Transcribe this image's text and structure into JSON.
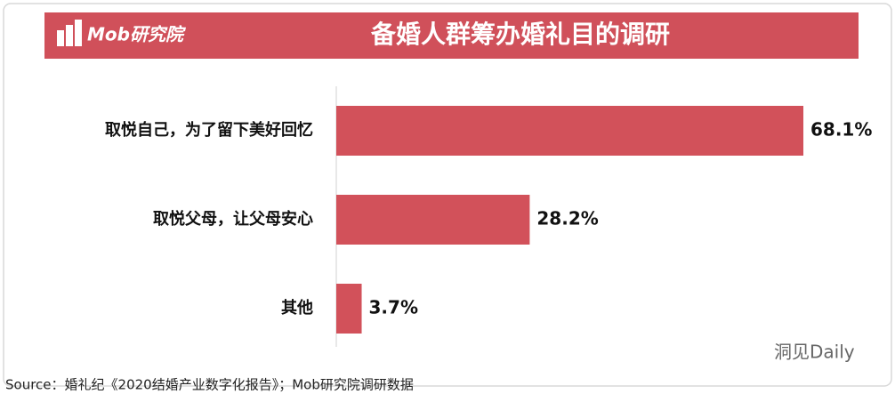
{
  "header": {
    "logo": "Mob研究院"
  },
  "chart_data": {
    "type": "bar",
    "orientation": "horizontal",
    "title": "备婚人群筹办婚礼目的调研",
    "categories": [
      "取悦自己，为了留下美好回忆",
      "取悦父母，让父母安心",
      "其他"
    ],
    "values": [
      68.1,
      28.2,
      3.7
    ],
    "value_labels": [
      "68.1%",
      "28.2%",
      "3.7%"
    ],
    "color": "#d2515a"
  },
  "footer": {
    "source": "Source：婚礼纪《2020结婚产业数字化报告》；Mob研究院调研数据",
    "watermark": "洞见Daily"
  }
}
